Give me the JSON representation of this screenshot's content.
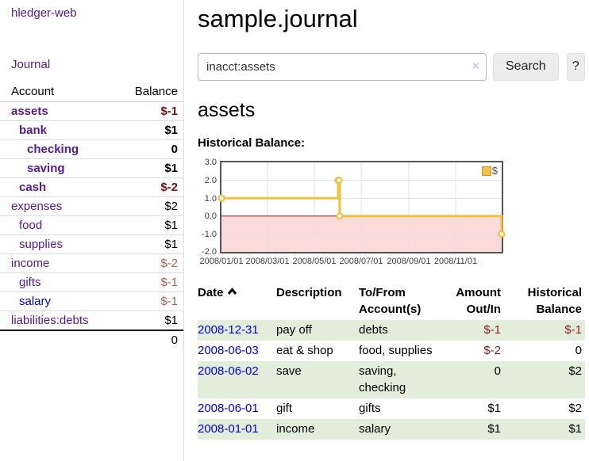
{
  "app": {
    "brand": "hledger-web"
  },
  "sidebar": {
    "journal_link": "Journal",
    "accounts": {
      "header_account": "Account",
      "header_balance": "Balance",
      "rows": [
        {
          "account": "assets",
          "balance": "$-1",
          "depth": 0,
          "bold": true
        },
        {
          "account": "bank",
          "balance": "$1",
          "depth": 1,
          "bold": true
        },
        {
          "account": "checking",
          "balance": "0",
          "depth": 2,
          "bold": true
        },
        {
          "account": "saving",
          "balance": "$1",
          "depth": 2,
          "bold": true
        },
        {
          "account": "cash",
          "balance": "$-2",
          "depth": 1,
          "bold": true
        },
        {
          "account": "expenses",
          "balance": "$2",
          "depth": 0,
          "bold": false
        },
        {
          "account": "food",
          "balance": "$1",
          "depth": 1,
          "bold": false
        },
        {
          "account": "supplies",
          "balance": "$1",
          "depth": 1,
          "bold": false
        },
        {
          "account": "income",
          "balance": "$-2",
          "depth": 0,
          "bold": false
        },
        {
          "account": "gifts",
          "balance": "$-1",
          "depth": 1,
          "bold": false
        },
        {
          "account": "salary",
          "balance": "$-1",
          "depth": 1,
          "bold": false,
          "blue": true
        },
        {
          "account": "liabilities:debts",
          "balance": "$1",
          "depth": 0,
          "bold": false
        }
      ],
      "total": "0"
    }
  },
  "main": {
    "title": "sample.journal",
    "search": {
      "value": "inacct:assets",
      "clear_icon": "×",
      "search_button": "Search",
      "help_button": "?"
    },
    "account_heading": "assets",
    "chart_label": "Historical Balance:"
  },
  "chart_data": {
    "type": "line",
    "step": true,
    "title": "Historical Balance:",
    "series": [
      {
        "name": "$",
        "color": "#edc240",
        "points": [
          [
            "2008-01-01",
            1.0
          ],
          [
            "2008-06-01",
            2.0
          ],
          [
            "2008-06-02",
            2.0
          ],
          [
            "2008-06-03",
            0.0
          ],
          [
            "2008-12-31",
            -1.0
          ]
        ]
      }
    ],
    "xlim": [
      "2008-01-01",
      "2008-12-31"
    ],
    "ylim": [
      -2,
      3
    ],
    "y_ticks": [
      "3.0",
      "2.0",
      "1.0",
      "0.0",
      "-1.0",
      "-2.0"
    ],
    "x_ticks": [
      "2008/01/01",
      "2008/03/01",
      "2008/05/01",
      "2008/07/01",
      "2008/09/01",
      "2008/11/01"
    ],
    "grid": true,
    "legend_position": "top-right",
    "negative_region_color": "#fbdada",
    "zero_line_color": "#8b1a1a",
    "grid_color": "#e0e0e0"
  },
  "register": {
    "headers": {
      "date": "Date",
      "description": "Description",
      "account_line1": "To/From",
      "account_line2": "Account(s)",
      "amount_line1": "Amount",
      "amount_line2": "Out/In",
      "balance_line1": "Historical",
      "balance_line2": "Balance"
    },
    "rows": [
      {
        "date": "2008-12-31",
        "description": "pay off",
        "accounts": "debts",
        "amount": "$-1",
        "balance": "$-1"
      },
      {
        "date": "2008-06-03",
        "description": "eat & shop",
        "accounts": "food, supplies",
        "amount": "$-2",
        "balance": "0"
      },
      {
        "date": "2008-06-02",
        "description": "save",
        "accounts": "saving, checking",
        "amount": "0",
        "balance": "$2"
      },
      {
        "date": "2008-06-01",
        "description": "gift",
        "accounts": "gifts",
        "amount": "$1",
        "balance": "$2"
      },
      {
        "date": "2008-01-01",
        "description": "income",
        "accounts": "salary",
        "amount": "$1",
        "balance": "$1"
      }
    ]
  },
  "colors": {
    "link_visited_purple": "#551a8b",
    "link_blue": "#0000e0",
    "negative_bold": "#7c1013",
    "negative_soft": "#a86060",
    "negative_table": "#8b1f1f",
    "row_stripe_green": "#e3eeda",
    "chart_line_gold": "#edc240"
  }
}
